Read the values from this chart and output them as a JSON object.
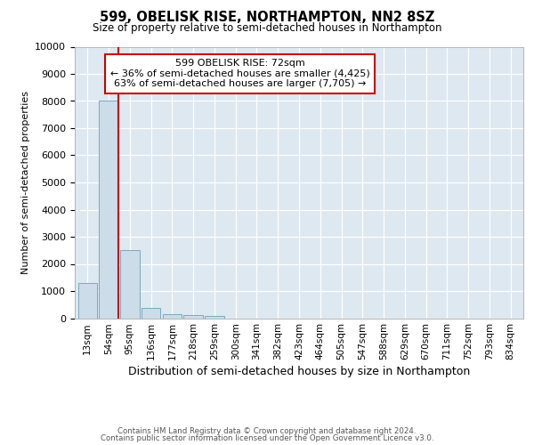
{
  "title": "599, OBELISK RISE, NORTHAMPTON, NN2 8SZ",
  "subtitle": "Size of property relative to semi-detached houses in Northampton",
  "xlabel": "Distribution of semi-detached houses by size in Northampton",
  "ylabel": "Number of semi-detached properties",
  "categories": [
    "13sqm",
    "54sqm",
    "95sqm",
    "136sqm",
    "177sqm",
    "218sqm",
    "259sqm",
    "300sqm",
    "341sqm",
    "382sqm",
    "423sqm",
    "464sqm",
    "505sqm",
    "547sqm",
    "588sqm",
    "629sqm",
    "670sqm",
    "711sqm",
    "752sqm",
    "793sqm",
    "834sqm"
  ],
  "values": [
    1300,
    8000,
    2500,
    390,
    150,
    100,
    70,
    0,
    0,
    0,
    0,
    0,
    0,
    0,
    0,
    0,
    0,
    0,
    0,
    0,
    0
  ],
  "bar_color": "#ccdce8",
  "bar_edge_color": "#7aaac0",
  "red_line_x": 1.45,
  "annotation_title": "599 OBELISK RISE: 72sqm",
  "annotation_line1": "← 36% of semi-detached houses are smaller (4,425)",
  "annotation_line2": "63% of semi-detached houses are larger (7,705) →",
  "annotation_box_color": "#ffffff",
  "annotation_box_edge": "#cc0000",
  "red_line_color": "#cc0000",
  "ylim": [
    0,
    10000
  ],
  "yticks": [
    0,
    1000,
    2000,
    3000,
    4000,
    5000,
    6000,
    7000,
    8000,
    9000,
    10000
  ],
  "background_color": "#dde8f0",
  "footer_line1": "Contains HM Land Registry data © Crown copyright and database right 2024.",
  "footer_line2": "Contains public sector information licensed under the Open Government Licence v3.0."
}
